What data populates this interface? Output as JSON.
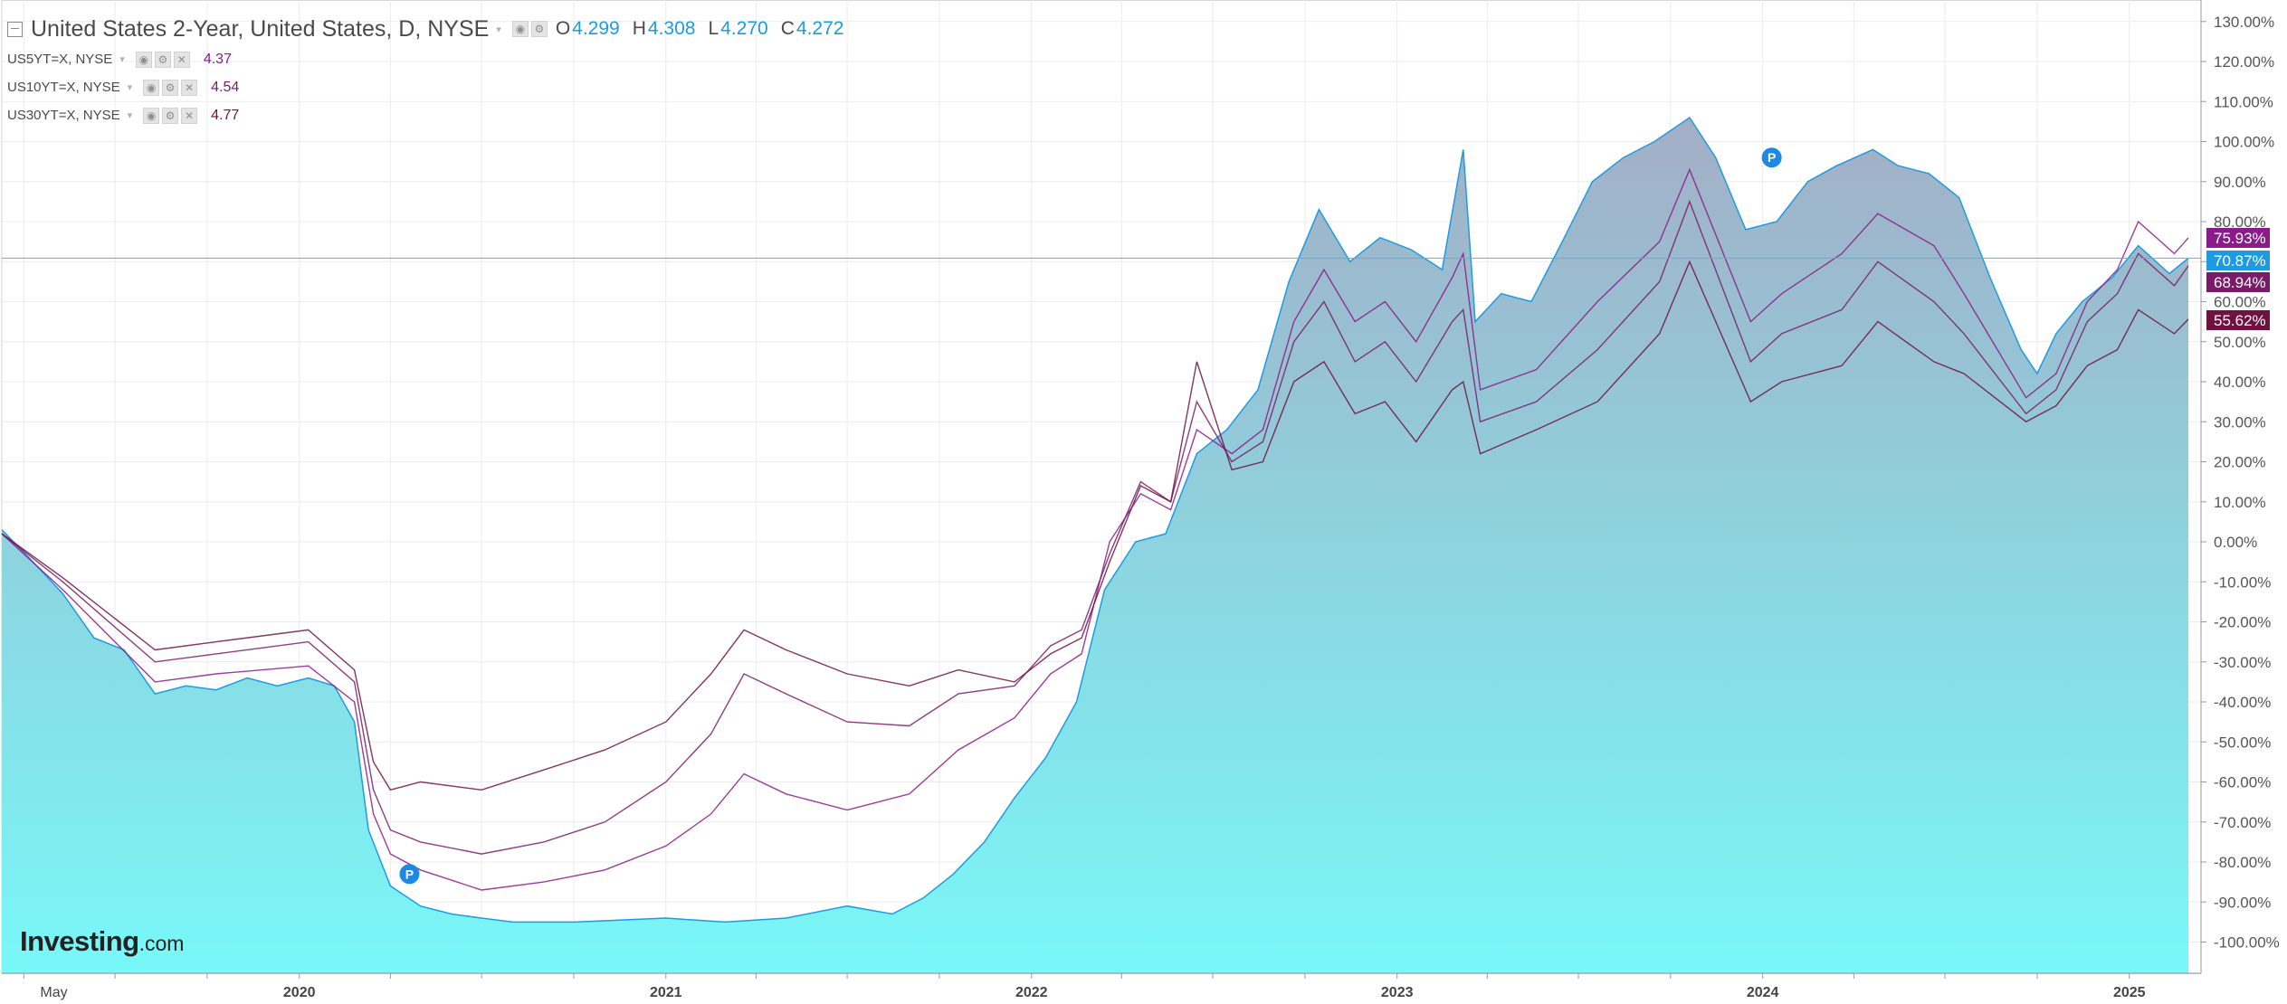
{
  "legend": {
    "main": {
      "title": "United States 2-Year, United States, D, NYSE",
      "ohlc": [
        {
          "label": "O",
          "value": "4.299"
        },
        {
          "label": "H",
          "value": "4.308"
        },
        {
          "label": "L",
          "value": "4.270"
        },
        {
          "label": "C",
          "value": "4.272"
        }
      ]
    },
    "overlays": [
      {
        "name": "US5YT=X, NYSE",
        "value": "4.37",
        "color": "#8b1a8b"
      },
      {
        "name": "US10YT=X, NYSE",
        "value": "4.54",
        "color": "#7a1b6a"
      },
      {
        "name": "US30YT=X, NYSE",
        "value": "4.77",
        "color": "#6e1240"
      }
    ]
  },
  "logo": {
    "brand": "Investing",
    "suffix": ".com"
  },
  "icons": {
    "collapse": "collapse-box-icon",
    "eye": "eye-icon",
    "settings": "gear-icon",
    "close": "close-icon",
    "caret": "chevron-down-icon",
    "marker": "p-marker-icon"
  },
  "markers": [
    {
      "label": "P",
      "date": "2020-04-20",
      "value": -83.0
    },
    {
      "label": "P",
      "date": "2024-01-10",
      "value": 96.0
    }
  ],
  "chart_data": {
    "type": "area",
    "title": "United States 2-Year, United States, D, NYSE",
    "ylabel": "",
    "xlabel": "",
    "y_scale": "linear",
    "y_unit": "%",
    "ylim": [
      -105,
      132
    ],
    "xlim": [
      "2019-03-10",
      "2025-03-10"
    ],
    "grid": true,
    "legend_position": "top-left",
    "y_ticks": [
      130,
      120,
      110,
      100,
      90,
      80,
      70,
      60,
      50,
      40,
      30,
      20,
      10,
      0,
      -10,
      -20,
      -30,
      -40,
      -50,
      -60,
      -70,
      -80,
      -90,
      -100
    ],
    "y_tick_labels": [
      "130.00%",
      "120.00%",
      "110.00%",
      "100.00%",
      "90.00%",
      "80.00%",
      "70.00%",
      "60.00%",
      "50.00%",
      "40.00%",
      "30.00%",
      "20.00%",
      "10.00%",
      "0.00%",
      "-10.00%",
      "-20.00%",
      "-30.00%",
      "-40.00%",
      "-50.00%",
      "-60.00%",
      "-70.00%",
      "-80.00%",
      "-90.00%",
      "-100.00%"
    ],
    "x_ticks": [
      {
        "date": "2019-05-01",
        "label": "May",
        "bold": false
      },
      {
        "date": "2020-01-01",
        "label": "2020",
        "bold": true
      },
      {
        "date": "2021-01-01",
        "label": "2021",
        "bold": true
      },
      {
        "date": "2022-01-01",
        "label": "2022",
        "bold": true
      },
      {
        "date": "2023-01-01",
        "label": "2023",
        "bold": true
      },
      {
        "date": "2024-01-01",
        "label": "2024",
        "bold": true
      },
      {
        "date": "2025-01-01",
        "label": "2025",
        "bold": true
      }
    ],
    "price_line": {
      "value": 70.87,
      "color": "#4fb3ea"
    },
    "last_value_badges": [
      {
        "series": "US5YT=X, NYSE",
        "label": "75.93%",
        "value": 75.93,
        "color": "#8b1a8b"
      },
      {
        "series": "United States 2-Year",
        "label": "70.87%",
        "value": 70.87,
        "color": "#1e9be0"
      },
      {
        "series": "US10YT=X, NYSE",
        "label": "68.94%",
        "value": 68.94,
        "color": "#7a1b6a"
      },
      {
        "series": "US30YT=X, NYSE",
        "label": "55.62%",
        "value": 55.62,
        "color": "#6e1240"
      }
    ],
    "series": [
      {
        "name": "United States 2-Year",
        "style": "area",
        "color": "#1e9be0",
        "fill_top": "#a3aec6",
        "fill_bottom": "#78f8f8",
        "points": [
          [
            "2019-03-10",
            3
          ],
          [
            "2019-04-10",
            -5
          ],
          [
            "2019-05-10",
            -13
          ],
          [
            "2019-06-10",
            -24
          ],
          [
            "2019-07-10",
            -27
          ],
          [
            "2019-08-10",
            -38
          ],
          [
            "2019-09-10",
            -36
          ],
          [
            "2019-10-10",
            -37
          ],
          [
            "2019-11-10",
            -34
          ],
          [
            "2019-12-10",
            -36
          ],
          [
            "2020-01-10",
            -34
          ],
          [
            "2020-02-05",
            -36
          ],
          [
            "2020-02-25",
            -45
          ],
          [
            "2020-03-10",
            -72
          ],
          [
            "2020-04-01",
            -86
          ],
          [
            "2020-05-01",
            -91
          ],
          [
            "2020-06-01",
            -93
          ],
          [
            "2020-07-01",
            -94
          ],
          [
            "2020-08-01",
            -95
          ],
          [
            "2020-10-01",
            -95
          ],
          [
            "2021-01-01",
            -94
          ],
          [
            "2021-03-01",
            -95
          ],
          [
            "2021-05-01",
            -94
          ],
          [
            "2021-07-01",
            -91
          ],
          [
            "2021-08-15",
            -93
          ],
          [
            "2021-09-15",
            -89
          ],
          [
            "2021-10-15",
            -83
          ],
          [
            "2021-11-15",
            -75
          ],
          [
            "2021-12-15",
            -64
          ],
          [
            "2022-01-15",
            -54
          ],
          [
            "2022-02-15",
            -40
          ],
          [
            "2022-03-15",
            -12
          ],
          [
            "2022-04-15",
            0
          ],
          [
            "2022-05-15",
            2
          ],
          [
            "2022-06-15",
            22
          ],
          [
            "2022-07-15",
            28
          ],
          [
            "2022-08-15",
            38
          ],
          [
            "2022-09-15",
            65
          ],
          [
            "2022-10-15",
            83
          ],
          [
            "2022-11-15",
            70
          ],
          [
            "2022-12-15",
            76
          ],
          [
            "2023-01-15",
            73
          ],
          [
            "2023-02-15",
            68
          ],
          [
            "2023-03-08",
            98
          ],
          [
            "2023-03-20",
            55
          ],
          [
            "2023-04-15",
            62
          ],
          [
            "2023-05-15",
            60
          ],
          [
            "2023-06-15",
            75
          ],
          [
            "2023-07-15",
            90
          ],
          [
            "2023-08-15",
            96
          ],
          [
            "2023-09-15",
            100
          ],
          [
            "2023-10-20",
            106
          ],
          [
            "2023-11-15",
            96
          ],
          [
            "2023-12-15",
            78
          ],
          [
            "2024-01-15",
            80
          ],
          [
            "2024-02-15",
            90
          ],
          [
            "2024-03-15",
            94
          ],
          [
            "2024-04-20",
            98
          ],
          [
            "2024-05-15",
            94
          ],
          [
            "2024-06-15",
            92
          ],
          [
            "2024-07-15",
            86
          ],
          [
            "2024-08-15",
            66
          ],
          [
            "2024-09-15",
            48
          ],
          [
            "2024-10-01",
            42
          ],
          [
            "2024-10-20",
            52
          ],
          [
            "2024-11-15",
            60
          ],
          [
            "2024-12-15",
            66
          ],
          [
            "2025-01-10",
            74
          ],
          [
            "2025-02-10",
            67
          ],
          [
            "2025-03-01",
            70.87
          ]
        ]
      },
      {
        "name": "US5YT=X, NYSE",
        "style": "line",
        "color": "#8b1a8b",
        "points": [
          [
            "2019-03-10",
            2
          ],
          [
            "2019-05-10",
            -12
          ],
          [
            "2019-08-10",
            -35
          ],
          [
            "2019-10-10",
            -33
          ],
          [
            "2020-01-10",
            -31
          ],
          [
            "2020-02-25",
            -40
          ],
          [
            "2020-03-15",
            -68
          ],
          [
            "2020-04-01",
            -78
          ],
          [
            "2020-05-01",
            -82
          ],
          [
            "2020-07-01",
            -87
          ],
          [
            "2020-09-01",
            -85
          ],
          [
            "2020-11-01",
            -82
          ],
          [
            "2021-01-01",
            -76
          ],
          [
            "2021-02-15",
            -68
          ],
          [
            "2021-03-20",
            -58
          ],
          [
            "2021-05-01",
            -63
          ],
          [
            "2021-07-01",
            -67
          ],
          [
            "2021-09-01",
            -63
          ],
          [
            "2021-10-20",
            -52
          ],
          [
            "2021-12-15",
            -44
          ],
          [
            "2022-01-20",
            -33
          ],
          [
            "2022-02-20",
            -28
          ],
          [
            "2022-03-20",
            0
          ],
          [
            "2022-04-20",
            12
          ],
          [
            "2022-05-20",
            8
          ],
          [
            "2022-06-15",
            28
          ],
          [
            "2022-07-20",
            22
          ],
          [
            "2022-08-20",
            28
          ],
          [
            "2022-09-20",
            55
          ],
          [
            "2022-10-20",
            68
          ],
          [
            "2022-11-20",
            55
          ],
          [
            "2022-12-20",
            60
          ],
          [
            "2023-01-20",
            50
          ],
          [
            "2023-02-25",
            66
          ],
          [
            "2023-03-08",
            72
          ],
          [
            "2023-03-25",
            38
          ],
          [
            "2023-05-20",
            43
          ],
          [
            "2023-07-20",
            60
          ],
          [
            "2023-09-20",
            75
          ],
          [
            "2023-10-20",
            93
          ],
          [
            "2023-12-20",
            55
          ],
          [
            "2024-01-20",
            62
          ],
          [
            "2024-03-20",
            72
          ],
          [
            "2024-04-25",
            82
          ],
          [
            "2024-06-20",
            74
          ],
          [
            "2024-07-20",
            62
          ],
          [
            "2024-09-20",
            36
          ],
          [
            "2024-10-20",
            42
          ],
          [
            "2024-11-20",
            60
          ],
          [
            "2024-12-20",
            68
          ],
          [
            "2025-01-10",
            80
          ],
          [
            "2025-02-15",
            72
          ],
          [
            "2025-03-01",
            75.93
          ]
        ]
      },
      {
        "name": "US10YT=X, NYSE",
        "style": "line",
        "color": "#7a1b6a",
        "points": [
          [
            "2019-03-10",
            2
          ],
          [
            "2019-05-10",
            -10
          ],
          [
            "2019-08-10",
            -30
          ],
          [
            "2019-10-10",
            -28
          ],
          [
            "2020-01-10",
            -25
          ],
          [
            "2020-02-25",
            -35
          ],
          [
            "2020-03-15",
            -62
          ],
          [
            "2020-04-01",
            -72
          ],
          [
            "2020-05-01",
            -75
          ],
          [
            "2020-07-01",
            -78
          ],
          [
            "2020-09-01",
            -75
          ],
          [
            "2020-11-01",
            -70
          ],
          [
            "2021-01-01",
            -60
          ],
          [
            "2021-02-15",
            -48
          ],
          [
            "2021-03-20",
            -33
          ],
          [
            "2021-05-01",
            -38
          ],
          [
            "2021-07-01",
            -45
          ],
          [
            "2021-09-01",
            -46
          ],
          [
            "2021-10-20",
            -38
          ],
          [
            "2021-12-15",
            -36
          ],
          [
            "2022-01-20",
            -26
          ],
          [
            "2022-02-20",
            -22
          ],
          [
            "2022-03-20",
            -3
          ],
          [
            "2022-04-20",
            15
          ],
          [
            "2022-05-20",
            10
          ],
          [
            "2022-06-15",
            35
          ],
          [
            "2022-07-20",
            20
          ],
          [
            "2022-08-20",
            25
          ],
          [
            "2022-09-20",
            50
          ],
          [
            "2022-10-20",
            60
          ],
          [
            "2022-11-20",
            45
          ],
          [
            "2022-12-20",
            50
          ],
          [
            "2023-01-20",
            40
          ],
          [
            "2023-02-25",
            55
          ],
          [
            "2023-03-08",
            58
          ],
          [
            "2023-03-25",
            30
          ],
          [
            "2023-05-20",
            35
          ],
          [
            "2023-07-20",
            48
          ],
          [
            "2023-09-20",
            65
          ],
          [
            "2023-10-20",
            85
          ],
          [
            "2023-12-20",
            45
          ],
          [
            "2024-01-20",
            52
          ],
          [
            "2024-03-20",
            58
          ],
          [
            "2024-04-25",
            70
          ],
          [
            "2024-06-20",
            60
          ],
          [
            "2024-07-20",
            52
          ],
          [
            "2024-09-20",
            32
          ],
          [
            "2024-10-20",
            38
          ],
          [
            "2024-11-20",
            55
          ],
          [
            "2024-12-20",
            62
          ],
          [
            "2025-01-10",
            72
          ],
          [
            "2025-02-15",
            64
          ],
          [
            "2025-03-01",
            68.94
          ]
        ]
      },
      {
        "name": "US30YT=X, NYSE",
        "style": "line",
        "color": "#6e1240",
        "points": [
          [
            "2019-03-10",
            2
          ],
          [
            "2019-05-10",
            -9
          ],
          [
            "2019-08-10",
            -27
          ],
          [
            "2019-10-10",
            -25
          ],
          [
            "2020-01-10",
            -22
          ],
          [
            "2020-02-25",
            -32
          ],
          [
            "2020-03-15",
            -55
          ],
          [
            "2020-04-01",
            -62
          ],
          [
            "2020-05-01",
            -60
          ],
          [
            "2020-07-01",
            -62
          ],
          [
            "2020-09-01",
            -57
          ],
          [
            "2020-11-01",
            -52
          ],
          [
            "2021-01-01",
            -45
          ],
          [
            "2021-02-15",
            -33
          ],
          [
            "2021-03-20",
            -22
          ],
          [
            "2021-05-01",
            -27
          ],
          [
            "2021-07-01",
            -33
          ],
          [
            "2021-09-01",
            -36
          ],
          [
            "2021-10-20",
            -32
          ],
          [
            "2021-12-15",
            -35
          ],
          [
            "2022-01-20",
            -28
          ],
          [
            "2022-02-20",
            -24
          ],
          [
            "2022-03-20",
            -5
          ],
          [
            "2022-04-20",
            14
          ],
          [
            "2022-05-20",
            10
          ],
          [
            "2022-06-15",
            45
          ],
          [
            "2022-07-20",
            18
          ],
          [
            "2022-08-20",
            20
          ],
          [
            "2022-09-20",
            40
          ],
          [
            "2022-10-20",
            45
          ],
          [
            "2022-11-20",
            32
          ],
          [
            "2022-12-20",
            35
          ],
          [
            "2023-01-20",
            25
          ],
          [
            "2023-02-25",
            38
          ],
          [
            "2023-03-08",
            40
          ],
          [
            "2023-03-25",
            22
          ],
          [
            "2023-05-20",
            28
          ],
          [
            "2023-07-20",
            35
          ],
          [
            "2023-09-20",
            52
          ],
          [
            "2023-10-20",
            70
          ],
          [
            "2023-12-20",
            35
          ],
          [
            "2024-01-20",
            40
          ],
          [
            "2024-03-20",
            44
          ],
          [
            "2024-04-25",
            55
          ],
          [
            "2024-06-20",
            45
          ],
          [
            "2024-07-20",
            42
          ],
          [
            "2024-09-20",
            30
          ],
          [
            "2024-10-20",
            34
          ],
          [
            "2024-11-20",
            44
          ],
          [
            "2024-12-20",
            48
          ],
          [
            "2025-01-10",
            58
          ],
          [
            "2025-02-15",
            52
          ],
          [
            "2025-03-01",
            55.62
          ]
        ]
      }
    ]
  }
}
